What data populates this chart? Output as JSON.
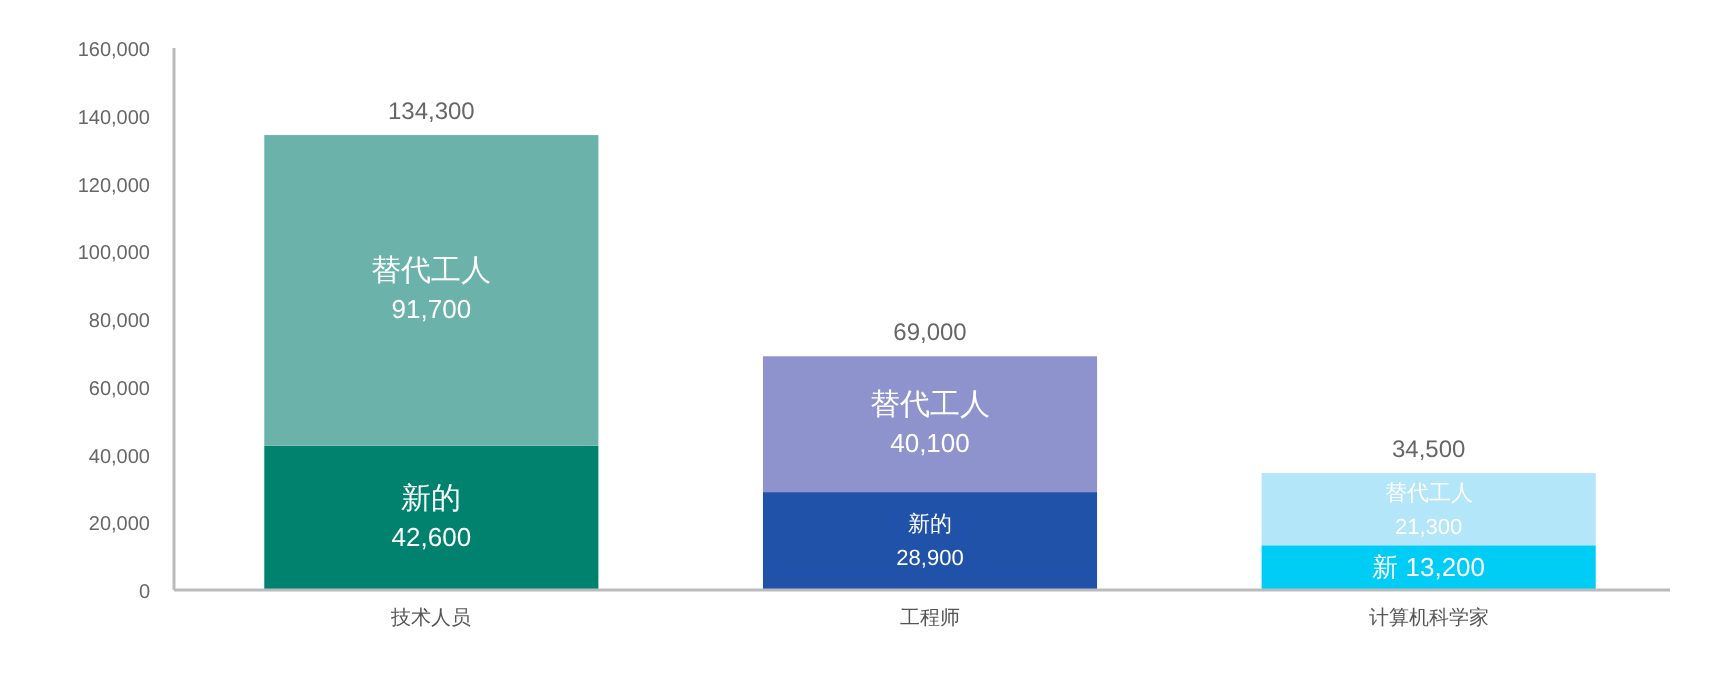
{
  "chart_data": {
    "type": "bar",
    "stacked": true,
    "categories": [
      "技术人员",
      "工程师",
      "计算机科学家"
    ],
    "series": [
      {
        "colors": [
          "#00826f",
          "#1f52a8",
          "#00cdf5"
        ],
        "values": [
          42600,
          28900,
          13200
        ],
        "value_labels": [
          "新的\n42,600",
          "新的\n28,900",
          "新 13,200"
        ]
      },
      {
        "colors": [
          "#6bb3aa",
          "#8e93cd",
          "#b3e6f8"
        ],
        "values": [
          91700,
          40100,
          21300
        ],
        "value_labels": [
          "替代工人\n91,700",
          "替代工人\n40,100",
          "替代工人\n21,300"
        ]
      }
    ],
    "totals": [
      "134,300",
      "69,000",
      "34,500"
    ],
    "ylim": [
      0,
      160000
    ],
    "yticks": [
      {
        "value": 0,
        "label": "0"
      },
      {
        "value": 20000,
        "label": "20,000"
      },
      {
        "value": 40000,
        "label": "40,000"
      },
      {
        "value": 60000,
        "label": "60,000"
      },
      {
        "value": 80000,
        "label": "80,000"
      },
      {
        "value": 100000,
        "label": "100,000"
      },
      {
        "value": 120000,
        "label": "120,000"
      },
      {
        "value": 140000,
        "label": "140,000"
      },
      {
        "value": 160000,
        "label": "160,000"
      }
    ],
    "grid": false
  }
}
